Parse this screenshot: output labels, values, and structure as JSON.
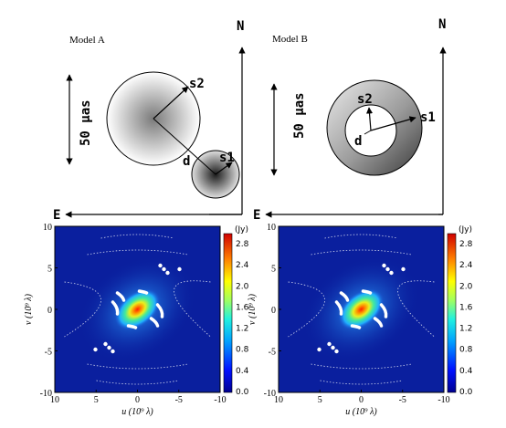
{
  "colors": {
    "line": "#000000",
    "plot_bg": "#0a1f9e",
    "uv_point": "#ffffff"
  },
  "model_a": {
    "title": "Model A",
    "north": "N",
    "east": "E",
    "scale": "50 µas",
    "labels": {
      "s1": "s1",
      "s2": "s2",
      "d": "d"
    }
  },
  "model_b": {
    "title": "Model B",
    "north": "N",
    "east": "E",
    "scale": "50 µas",
    "labels": {
      "s1": "s1",
      "s2": "s2",
      "d": "d"
    }
  },
  "plots": [
    {
      "xlabel": "u (10⁹ λ)",
      "ylabel": "v (10⁹ λ)",
      "xticks": [
        "10",
        "5",
        "0",
        "-5",
        "-10"
      ],
      "yticks": [
        "10",
        "5",
        "0",
        "-5",
        "-10"
      ],
      "colorbar": {
        "unit": "(Jy)",
        "ticks": [
          "2.8",
          "2.4",
          "2.0",
          "1.6",
          "1.2",
          "0.8",
          "0.4",
          "0.0"
        ]
      }
    },
    {
      "xlabel": "u (10⁹ λ)",
      "ylabel": "v (10⁹ λ)",
      "xticks": [
        "10",
        "5",
        "0",
        "-5",
        "-10"
      ],
      "yticks": [
        "10",
        "5",
        "0",
        "-5",
        "-10"
      ],
      "colorbar": {
        "unit": "(Jy)",
        "ticks": [
          "2.8",
          "2.4",
          "2.0",
          "1.6",
          "1.2",
          "0.8",
          "0.4",
          "0.0"
        ]
      }
    }
  ]
}
